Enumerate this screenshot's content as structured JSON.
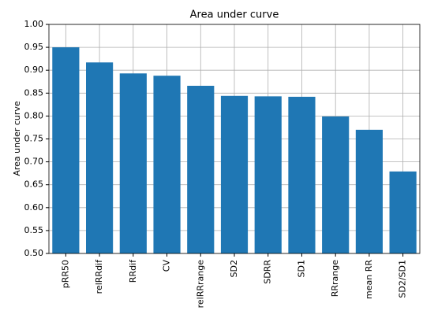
{
  "chart_data": {
    "type": "bar",
    "title": "Area under curve",
    "y_label": "Area under curve",
    "categories": [
      "pRR50",
      "relRRdif",
      "RRdif",
      "CV",
      "relRRrange",
      "SD2",
      "SDRR",
      "SD1",
      "RRrange",
      "mean RR",
      "SD2/SD1"
    ],
    "values": [
      0.95,
      0.917,
      0.893,
      0.888,
      0.866,
      0.844,
      0.843,
      0.842,
      0.799,
      0.77,
      0.679
    ],
    "color": "#1f77b4",
    "ylim": [
      0.5,
      1.0
    ],
    "yticks": [
      {
        "value": 0.5,
        "label": "0.50"
      },
      {
        "value": 0.55,
        "label": "0.55"
      },
      {
        "value": 0.6,
        "label": "0.60"
      },
      {
        "value": 0.65,
        "label": "0.65"
      },
      {
        "value": 0.7,
        "label": "0.70"
      },
      {
        "value": 0.75,
        "label": "0.75"
      },
      {
        "value": 0.8,
        "label": "0.80"
      },
      {
        "value": 0.85,
        "label": "0.85"
      },
      {
        "value": 0.9,
        "label": "0.90"
      },
      {
        "value": 0.95,
        "label": "0.95"
      },
      {
        "value": 1.0,
        "label": "1.00"
      }
    ],
    "grid": true
  }
}
